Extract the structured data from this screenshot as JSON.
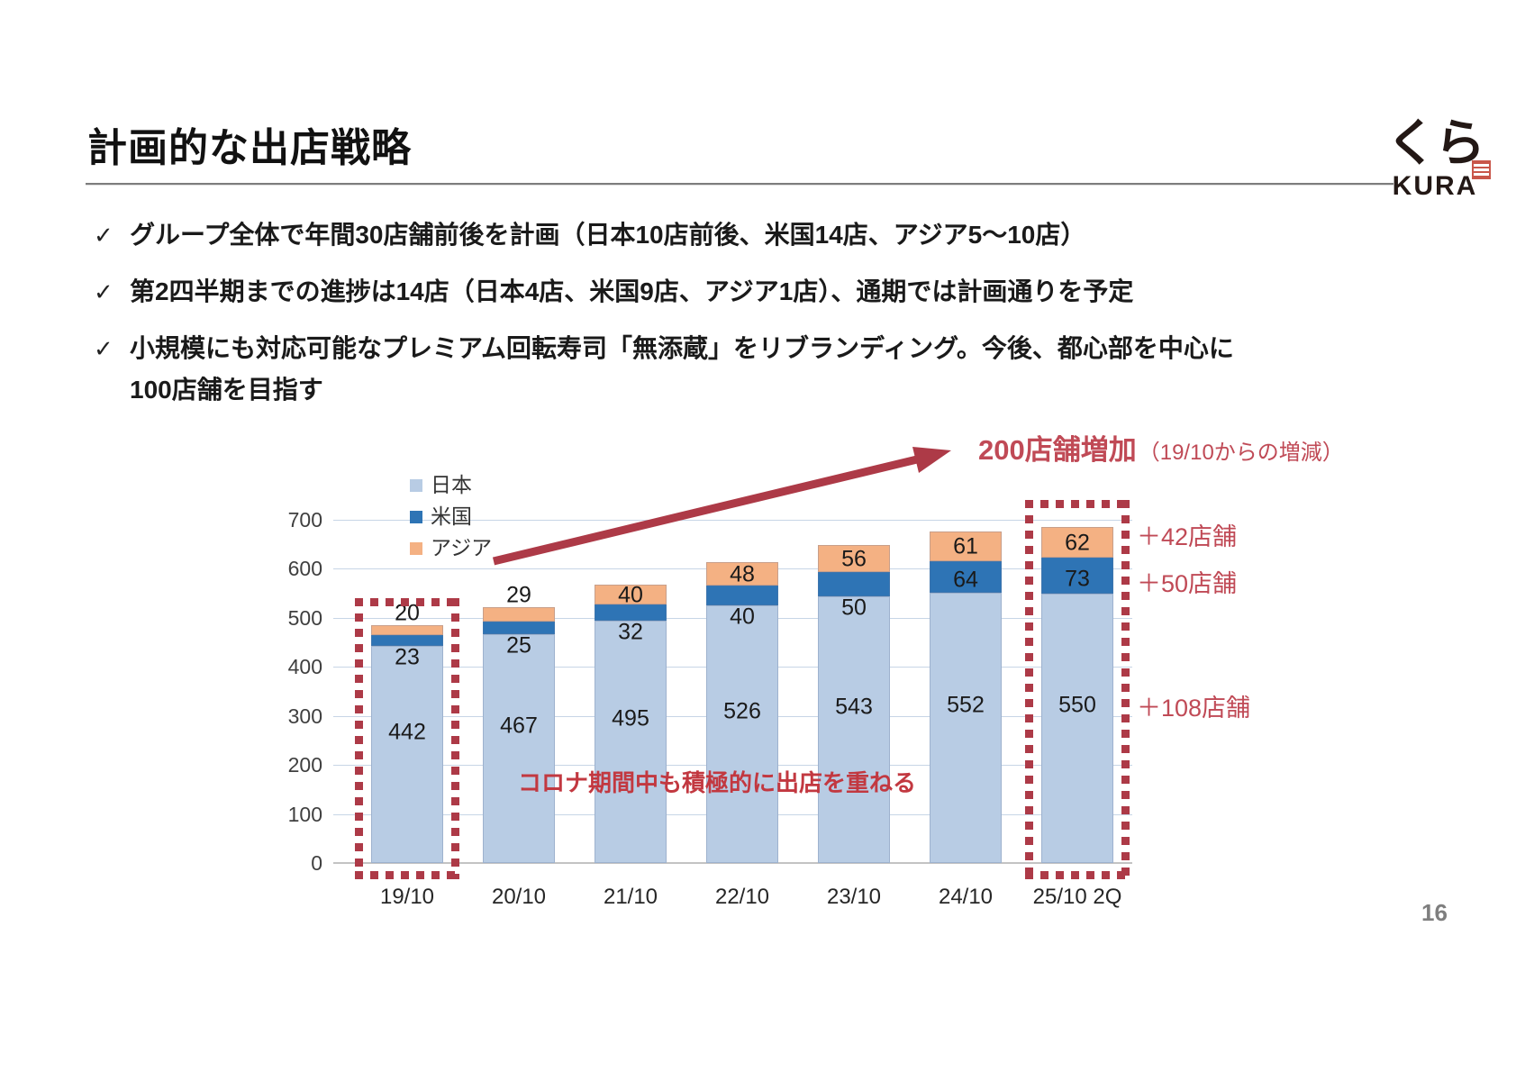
{
  "slide": {
    "title": "計画的な出店戦略",
    "page_number": "16",
    "check_glyph": "✓",
    "bullets": [
      "グループ全体で年間30店舗前後を計画（日本10店前後、米国14店、アジア5～10店）",
      "第2四半期までの進捗は14店（日本4店、米国9店、アジア1店）、通期では計画通りを予定",
      "小規模にも対応可能なプレミアム回転寿司「無添蔵」をリブランディング。今後、都心部を中心に\n100店舗を目指す"
    ],
    "logo": {
      "kana": "くら",
      "latin": "KURA"
    }
  },
  "chart_data": {
    "type": "bar",
    "stacked": true,
    "categories": [
      "19/10",
      "20/10",
      "21/10",
      "22/10",
      "23/10",
      "24/10",
      "25/10 2Q"
    ],
    "series": [
      {
        "name": "日本",
        "color": "#B8CCE4",
        "values": [
          442,
          467,
          495,
          526,
          543,
          552,
          550
        ]
      },
      {
        "name": "米国",
        "color": "#2E74B5",
        "values": [
          23,
          25,
          32,
          40,
          50,
          64,
          73
        ]
      },
      {
        "name": "アジア",
        "color": "#F4B183",
        "values": [
          20,
          29,
          40,
          48,
          56,
          61,
          62
        ]
      }
    ],
    "title": "",
    "xlabel": "",
    "ylabel": "",
    "ylim": [
      0,
      700
    ],
    "yticks": [
      0,
      100,
      200,
      300,
      400,
      500,
      600,
      700
    ],
    "grid": true,
    "legend_position": "top-left-vertical",
    "highlight_bar_indices": [
      0,
      6
    ],
    "accent_color": "#AD3A47",
    "annotation_text_color": "#C04A56",
    "covid_text_color": "#C23840",
    "annotations": {
      "headline": "200店舗増加",
      "headline_note": "（19/10からの増減）",
      "asia_delta": "＋42店舗",
      "us_delta": "＋50店舗",
      "japan_delta": "＋108店舗",
      "covid_note": "コロナ期間中も積極的に出店を重ねる"
    }
  }
}
